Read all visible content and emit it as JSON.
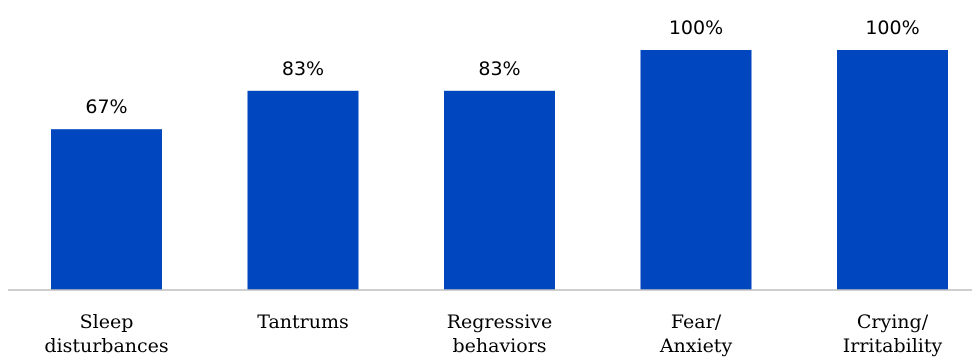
{
  "chart_data": {
    "type": "bar",
    "categories": [
      [
        "Sleep",
        "disturbances"
      ],
      [
        "Tantrums"
      ],
      [
        "Regressive",
        "behaviors"
      ],
      [
        "Fear/",
        "Anxiety"
      ],
      [
        "Crying/",
        "Irritability"
      ]
    ],
    "values": [
      67,
      83,
      83,
      100,
      100
    ],
    "value_labels": [
      "67%",
      "83%",
      "83%",
      "100%",
      "100%"
    ],
    "ylim": [
      0,
      100
    ],
    "grid": false,
    "legend": "none",
    "bar_color": "#0047BF",
    "axis_color": "#BFBFBF"
  }
}
